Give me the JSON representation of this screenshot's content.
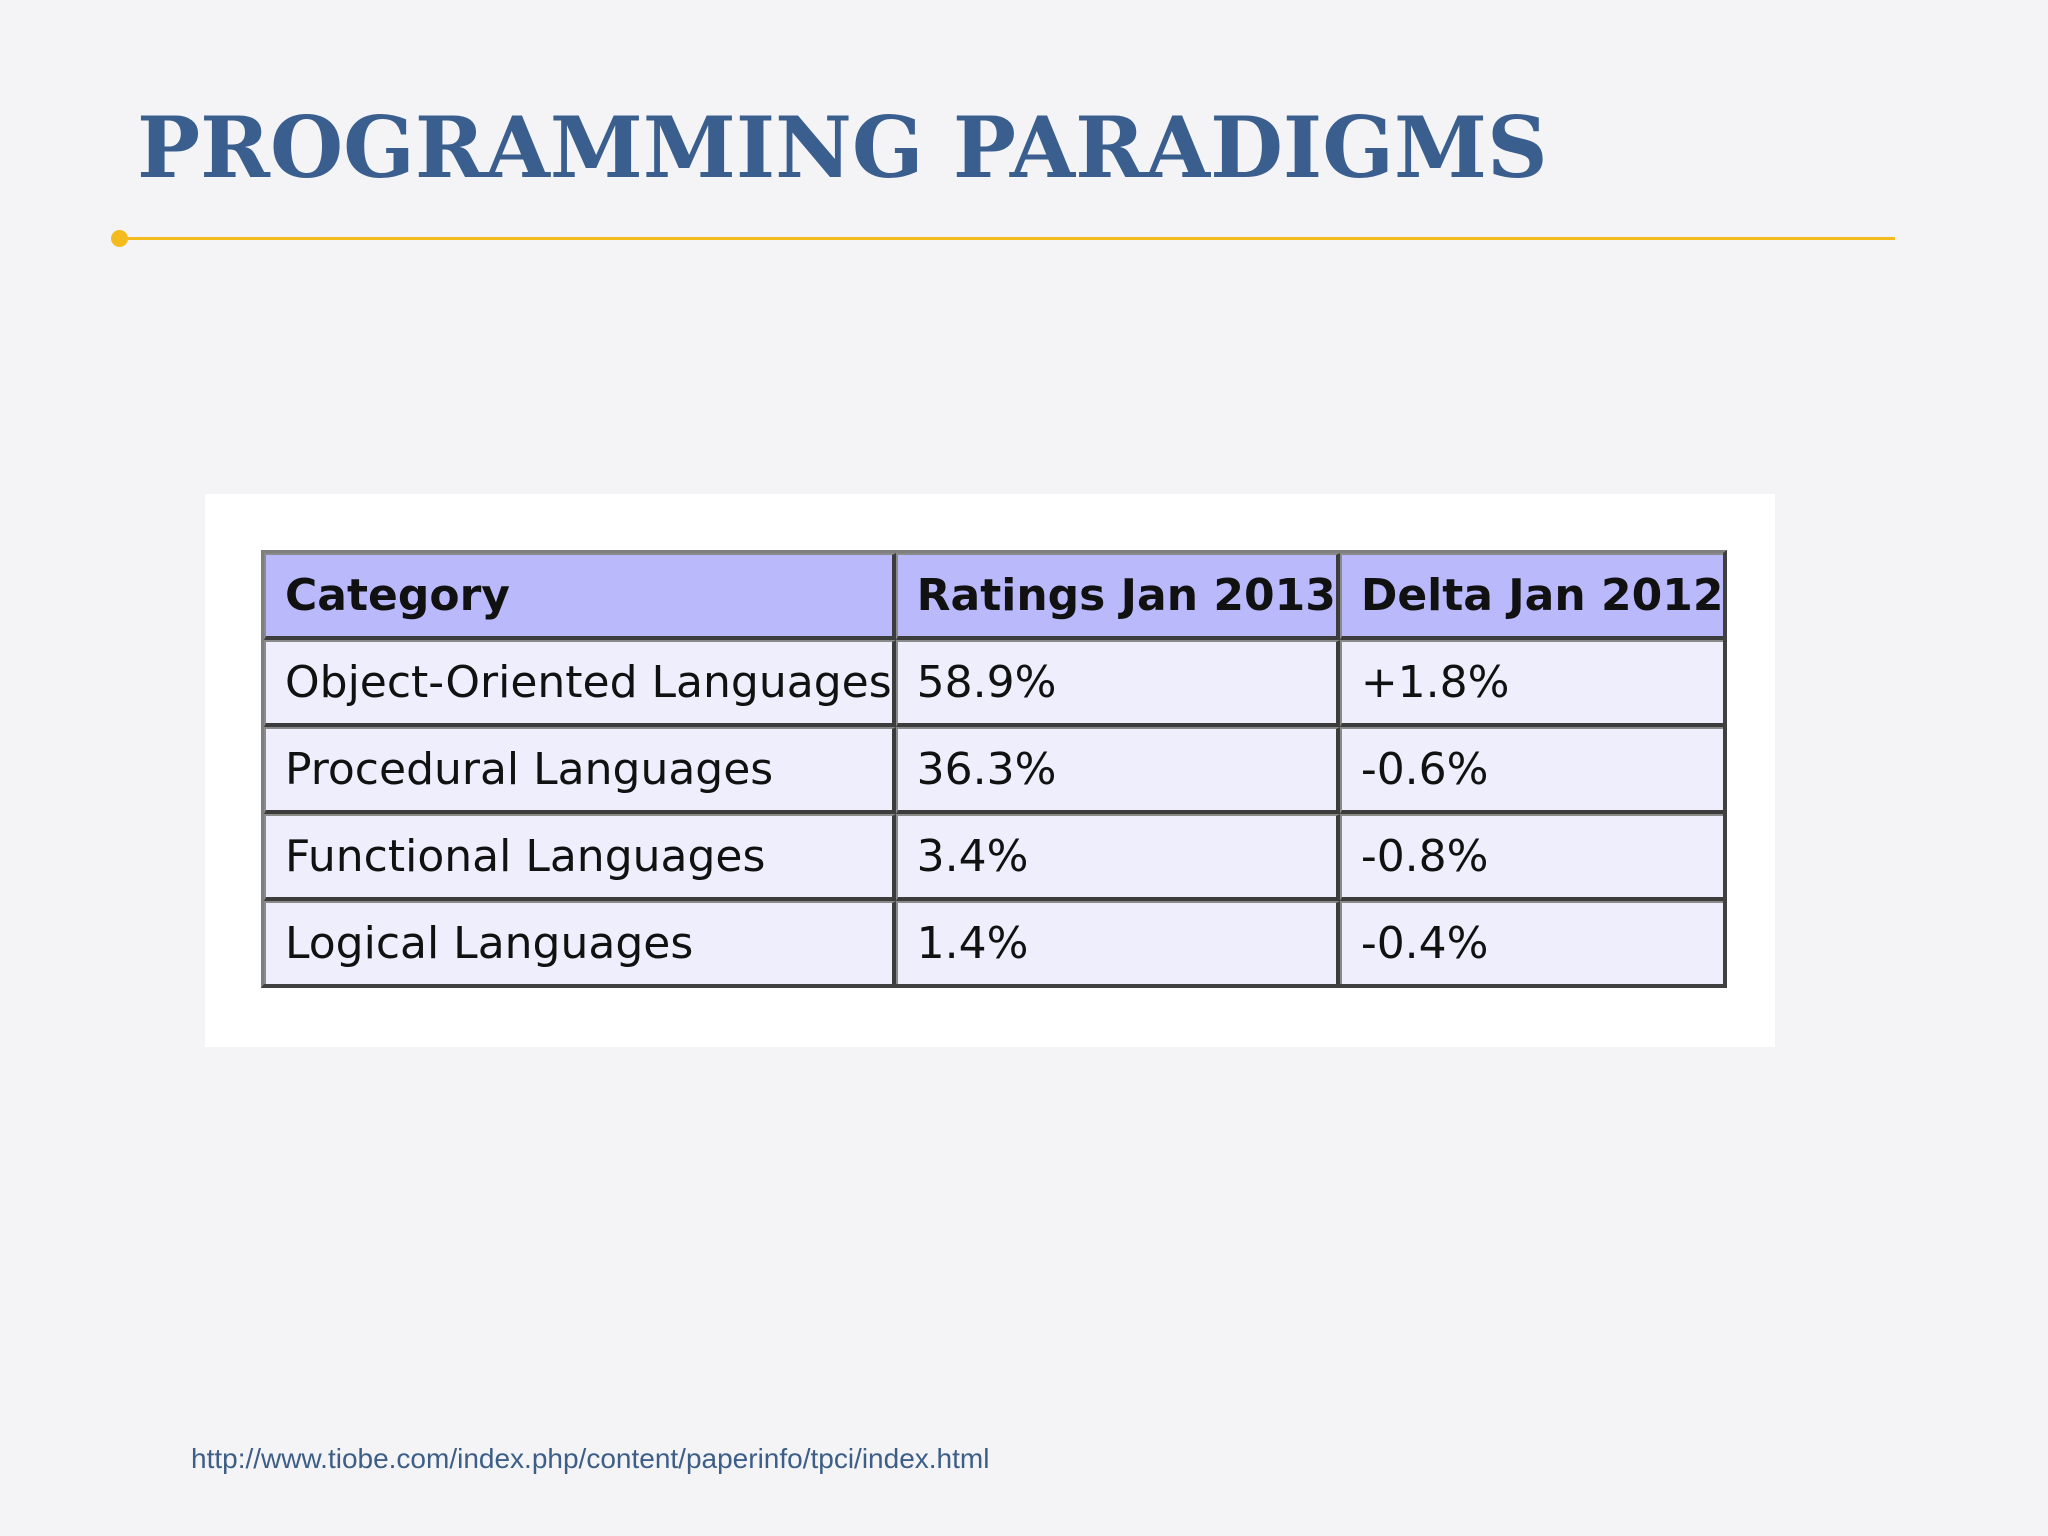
{
  "slide": {
    "title": "PROGRAMMING PARADIGMS",
    "accent_color": "#f3bb1d",
    "title_color": "#3a5f8f"
  },
  "table": {
    "headers": [
      "Category",
      "Ratings Jan 2013",
      "Delta Jan 2012"
    ],
    "header_bg": "#b9b9fb",
    "row_bg": "#eeeefd",
    "rows": [
      [
        "Object-Oriented Languages",
        "58.9%",
        "+1.8%"
      ],
      [
        "Procedural Languages",
        "36.3%",
        "-0.6%"
      ],
      [
        "Functional Languages",
        "3.4%",
        "-0.8%"
      ],
      [
        "Logical Languages",
        "1.4%",
        "-0.4%"
      ]
    ]
  },
  "footer": {
    "source_url": "http://www.tiobe.com/index.php/content/paperinfo/tpci/index.html"
  }
}
